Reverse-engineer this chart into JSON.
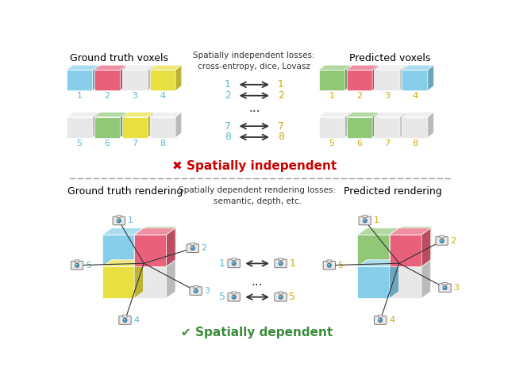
{
  "bg_color": "#ffffff",
  "top_section": {
    "title_left": "Ground truth voxels",
    "title_right": "Predicted voxels",
    "title_center": "Spatially independent losses:\ncross-entropy, dice, Lovasz",
    "gt_row1_colors": [
      "#87CEEB",
      "#E8607A",
      "#E8E8E8",
      "#E8E040"
    ],
    "gt_row1_labels": [
      "1",
      "2",
      "3",
      "4"
    ],
    "gt_row1_label_color": "#5BB8D4",
    "gt_row2_colors": [
      "#E8E8E8",
      "#90C878",
      "#E8E040",
      "#E8E8E8"
    ],
    "gt_row2_labels": [
      "5",
      "6",
      "7",
      "8"
    ],
    "gt_row2_label_color": "#5BB8D4",
    "pred_row1_colors": [
      "#90C878",
      "#E8607A",
      "#E8E8E8",
      "#87CEEB"
    ],
    "pred_row1_labels": [
      "1",
      "2",
      "3",
      "4"
    ],
    "pred_row1_label_color": "#D4A800",
    "pred_row2_colors": [
      "#E8E8E8",
      "#90C878",
      "#E8E8E8",
      "#E8E8E8"
    ],
    "pred_row2_labels": [
      "5",
      "6",
      "7",
      "8"
    ],
    "pred_row2_label_color": "#D4A800",
    "arrows_left_labels": [
      "1",
      "2",
      "7",
      "8"
    ],
    "arrows_right_labels": [
      "1",
      "2",
      "7",
      "8"
    ],
    "left_arrow_color": "#5BB8D4",
    "right_arrow_color": "#D4A800",
    "status_symbol": "✖",
    "status_text": " Spatially independent",
    "status_color": "#CC0000"
  },
  "bottom_section": {
    "title_left": "Ground truth rendering",
    "title_right": "Predicted rendering",
    "title_center": "Spatially dependent rendering losses:\nsemantic, depth, etc.",
    "arrows_left_labels": [
      "1",
      "5"
    ],
    "arrows_right_labels": [
      "1",
      "5"
    ],
    "arrows_left_colors": [
      "#5BB8D4",
      "#5BB8D4"
    ],
    "arrows_right_colors": [
      "#D4A800",
      "#D4A800"
    ],
    "status_symbol": "✔",
    "status_text": " Spatially dependent",
    "status_color": "#3A8C3A"
  },
  "dashed_line_color": "#999999",
  "font_size_title": 9,
  "font_size_label": 8,
  "font_size_status": 11
}
